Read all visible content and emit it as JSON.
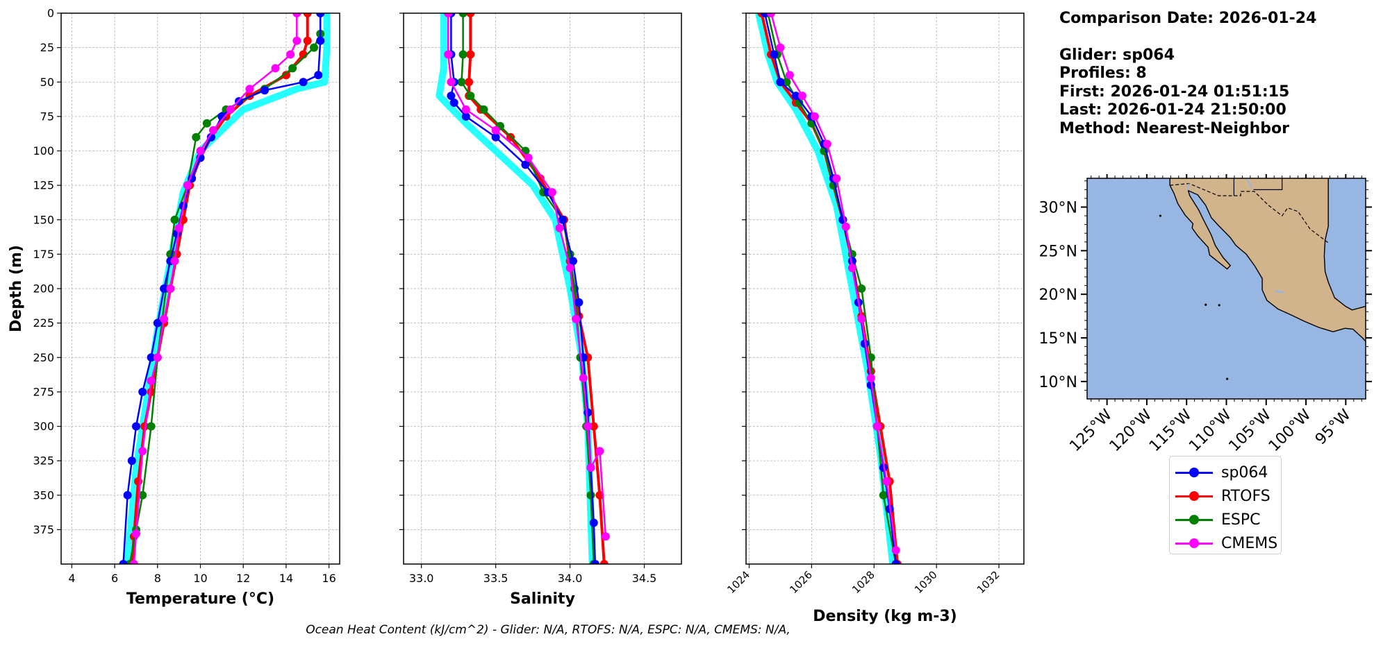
{
  "info": {
    "comparison_date": "Comparison Date: 2026-01-24",
    "glider": "Glider: sp064",
    "profiles": "Profiles: 8",
    "first": "First: 2026-01-24 01:51:15",
    "last": "Last: 2026-01-24 21:50:00",
    "method": "Method: Nearest-Neighbor"
  },
  "footer": "Ocean Heat Content (kJ/cm^2) - Glider: N/A,  RTOFS: N/A,  ESPC: N/A,  CMEMS: N/A,",
  "colors": {
    "sp064": "#0000ff",
    "RTOFS": "#ff0000",
    "ESPC": "#008000",
    "CMEMS": "#ff00ff",
    "glider_raw": "#00ffff",
    "ocean": "#97b6e1",
    "land": "#d2b48c"
  },
  "legend": [
    "sp064",
    "RTOFS",
    "ESPC",
    "CMEMS"
  ],
  "chart_data": [
    {
      "type": "line",
      "xlabel": "Temperature (°C)",
      "ylabel": "Depth (m)",
      "xlim": [
        3.5,
        16.5
      ],
      "ylim": [
        400,
        0
      ],
      "xticks": [
        4,
        6,
        8,
        10,
        12,
        14,
        16
      ],
      "yticks": [
        0,
        25,
        50,
        75,
        100,
        125,
        150,
        175,
        200,
        225,
        250,
        275,
        300,
        325,
        350,
        375
      ],
      "grid": true,
      "series": [
        {
          "name": "sp064",
          "x": [
            15.6,
            15.6,
            15.5,
            14.8,
            13.0,
            11.8,
            11.0,
            10.5,
            10.0,
            9.6,
            9.2,
            8.9,
            8.6,
            8.3,
            8.0,
            7.7,
            7.3,
            7.0,
            6.8,
            6.6,
            6.4
          ],
          "y": [
            0,
            20,
            45,
            50,
            56,
            64,
            75,
            90,
            105,
            120,
            140,
            160,
            180,
            200,
            225,
            250,
            275,
            300,
            325,
            350,
            400
          ]
        },
        {
          "name": "RTOFS",
          "x": [
            15.0,
            15.0,
            14.8,
            14.0,
            12.3,
            11.2,
            10.5,
            10.0,
            9.5,
            9.2,
            8.9,
            8.6,
            8.3,
            8.0,
            7.7,
            7.4,
            7.1,
            6.9,
            6.8
          ],
          "y": [
            0,
            20,
            30,
            45,
            60,
            75,
            90,
            105,
            125,
            150,
            175,
            200,
            225,
            250,
            275,
            300,
            340,
            380,
            400
          ]
        },
        {
          "name": "ESPC",
          "x": [
            15.6,
            15.6,
            15.3,
            14.3,
            13.0,
            11.2,
            10.3,
            9.8,
            9.4,
            8.8,
            8.6,
            8.4,
            8.0,
            7.7,
            7.3,
            7.0,
            6.7
          ],
          "y": [
            0,
            15,
            25,
            40,
            55,
            70,
            80,
            90,
            125,
            150,
            175,
            200,
            250,
            300,
            350,
            375,
            400
          ]
        },
        {
          "name": "CMEMS",
          "x": [
            14.5,
            14.5,
            14.2,
            13.5,
            12.3,
            11.4,
            10.6,
            10.0,
            9.4,
            9.0,
            8.8,
            8.6,
            8.3,
            8.0,
            7.7,
            7.3,
            7.0,
            6.9
          ],
          "y": [
            0,
            20,
            30,
            40,
            55,
            70,
            85,
            100,
            125,
            156,
            180,
            200,
            222,
            250,
            267,
            318,
            378,
            400
          ]
        }
      ],
      "glider_raw": {
        "x": [
          15.9,
          15.9,
          15.8,
          14.5,
          12.0,
          11.0,
          10.0,
          9.2,
          8.6,
          8.0,
          7.5,
          7.0,
          6.7,
          6.6
        ],
        "y": [
          0,
          25,
          50,
          55,
          70,
          85,
          100,
          130,
          180,
          230,
          280,
          330,
          380,
          400
        ]
      }
    },
    {
      "type": "line",
      "xlabel": "Salinity",
      "xlim": [
        32.88,
        34.75
      ],
      "ylim": [
        400,
        0
      ],
      "xticks": [
        33.0,
        33.5,
        34.0,
        34.5
      ],
      "xtick_labels": [
        "33.0",
        "33.5",
        "34.0",
        "34.5"
      ],
      "grid": true,
      "series": [
        {
          "name": "sp064",
          "x": [
            33.2,
            33.2,
            33.22,
            33.2,
            33.22,
            33.3,
            33.5,
            33.7,
            33.85,
            33.95,
            34.02,
            34.06,
            34.09,
            34.12,
            34.14,
            34.16,
            34.17
          ],
          "y": [
            0,
            30,
            50,
            60,
            65,
            75,
            90,
            110,
            130,
            150,
            180,
            210,
            250,
            290,
            330,
            370,
            400
          ]
        },
        {
          "name": "RTOFS",
          "x": [
            33.33,
            33.33,
            33.32,
            33.32,
            33.4,
            33.6,
            33.8,
            33.96,
            34.0,
            34.06,
            34.12,
            34.16,
            34.2,
            34.23
          ],
          "y": [
            0,
            30,
            50,
            60,
            70,
            90,
            120,
            150,
            180,
            220,
            250,
            300,
            350,
            400
          ]
        },
        {
          "name": "ESPC",
          "x": [
            33.28,
            33.28,
            33.27,
            33.33,
            33.42,
            33.53,
            33.7,
            33.82,
            33.95,
            34.0,
            34.03,
            34.07,
            34.11,
            34.14,
            34.16
          ],
          "y": [
            0,
            30,
            50,
            60,
            70,
            82,
            100,
            130,
            150,
            175,
            200,
            250,
            300,
            350,
            400
          ]
        },
        {
          "name": "CMEMS",
          "x": [
            33.18,
            33.18,
            33.2,
            33.3,
            33.5,
            33.72,
            33.88,
            33.93,
            34.0,
            34.04,
            34.09,
            34.12,
            34.14,
            34.2,
            34.24
          ],
          "y": [
            0,
            30,
            50,
            70,
            85,
            105,
            130,
            156,
            185,
            222,
            265,
            300,
            330,
            318,
            380
          ]
        }
      ],
      "glider_raw": {
        "x": [
          33.15,
          33.15,
          33.12,
          33.3,
          33.5,
          33.75,
          33.9,
          34.0,
          34.08,
          34.12,
          34.15
        ],
        "y": [
          0,
          40,
          60,
          80,
          100,
          125,
          150,
          200,
          250,
          300,
          400
        ]
      }
    },
    {
      "type": "line",
      "xlabel": "Density (kg m-3)",
      "xlim": [
        1023.9,
        1032.8
      ],
      "ylim": [
        400,
        0
      ],
      "xticks": [
        1024,
        1026,
        1028,
        1030,
        1032
      ],
      "grid": true,
      "series": [
        {
          "name": "sp064",
          "x": [
            1024.5,
            1024.8,
            1025.0,
            1025.5,
            1026.0,
            1026.4,
            1026.7,
            1027.0,
            1027.3,
            1027.5,
            1027.7,
            1027.9,
            1028.1,
            1028.3,
            1028.5,
            1028.7
          ],
          "y": [
            0,
            30,
            50,
            60,
            75,
            95,
            120,
            150,
            180,
            210,
            240,
            270,
            300,
            330,
            360,
            400
          ]
        },
        {
          "name": "RTOFS",
          "x": [
            1024.4,
            1024.7,
            1025.0,
            1025.5,
            1026.0,
            1026.4,
            1026.7,
            1027.0,
            1027.3,
            1027.6,
            1027.9,
            1028.2,
            1028.5,
            1028.75
          ],
          "y": [
            0,
            30,
            50,
            65,
            80,
            100,
            125,
            150,
            180,
            220,
            260,
            300,
            340,
            400
          ]
        },
        {
          "name": "ESPC",
          "x": [
            1024.6,
            1024.9,
            1025.2,
            1025.6,
            1026.0,
            1026.4,
            1026.7,
            1027.0,
            1027.3,
            1027.6,
            1027.9,
            1028.1,
            1028.3,
            1028.7
          ],
          "y": [
            0,
            30,
            50,
            65,
            80,
            100,
            125,
            150,
            175,
            200,
            250,
            300,
            350,
            400
          ]
        },
        {
          "name": "CMEMS",
          "x": [
            1024.7,
            1025.0,
            1025.3,
            1025.7,
            1026.1,
            1026.5,
            1026.8,
            1027.1,
            1027.3,
            1027.6,
            1027.9,
            1028.1,
            1028.4,
            1028.7
          ],
          "y": [
            0,
            25,
            45,
            60,
            75,
            95,
            120,
            155,
            185,
            222,
            265,
            300,
            340,
            390
          ]
        }
      ],
      "glider_raw": {
        "x": [
          1024.3,
          1024.6,
          1024.9,
          1025.5,
          1026.2,
          1026.8,
          1027.3,
          1027.8,
          1028.2,
          1028.6
        ],
        "y": [
          0,
          30,
          50,
          70,
          100,
          140,
          200,
          260,
          320,
          400
        ]
      }
    },
    {
      "type": "map",
      "lon_ticks": [
        "125°W",
        "120°W",
        "115°W",
        "110°W",
        "105°W",
        "100°W",
        "95°W"
      ],
      "lat_ticks": [
        "30°N",
        "25°N",
        "20°N",
        "15°N",
        "10°N"
      ]
    }
  ]
}
